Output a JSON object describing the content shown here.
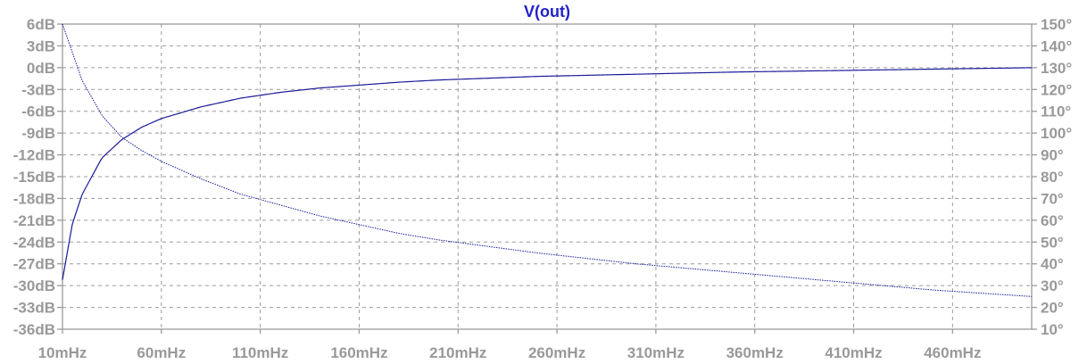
{
  "chart_data": {
    "type": "line",
    "title": "V(out)",
    "x_ticks": [
      "10mHz",
      "60mHz",
      "110mHz",
      "160mHz",
      "210mHz",
      "260mHz",
      "310mHz",
      "360mHz",
      "410mHz",
      "460mHz"
    ],
    "x_tick_values": [
      10,
      60,
      110,
      160,
      210,
      260,
      310,
      360,
      410,
      460
    ],
    "xlim": [
      10,
      500
    ],
    "y_left_ticks": [
      "6dB",
      "3dB",
      "0dB",
      "-3dB",
      "-6dB",
      "-9dB",
      "-12dB",
      "-15dB",
      "-18dB",
      "-21dB",
      "-24dB",
      "-27dB",
      "-30dB",
      "-33dB",
      "-36dB"
    ],
    "y_left_values": [
      6,
      3,
      0,
      -3,
      -6,
      -9,
      -12,
      -15,
      -18,
      -21,
      -24,
      -27,
      -30,
      -33,
      -36
    ],
    "ylim_left": [
      -36,
      6
    ],
    "y_right_ticks": [
      "150°",
      "140°",
      "130°",
      "120°",
      "110°",
      "100°",
      "90°",
      "80°",
      "70°",
      "60°",
      "50°",
      "40°",
      "30°",
      "20°",
      "10°"
    ],
    "y_right_values": [
      150,
      140,
      130,
      120,
      110,
      100,
      90,
      80,
      70,
      60,
      50,
      40,
      30,
      20,
      10
    ],
    "ylim_right": [
      10,
      150
    ],
    "grid": true,
    "series": [
      {
        "axis": "left",
        "style": "solid",
        "x": [
          10,
          15,
          20,
          30,
          40,
          50,
          60,
          80,
          100,
          120,
          140,
          160,
          180,
          200,
          250,
          300,
          350,
          400,
          450,
          500
        ],
        "y": [
          -29.2,
          -21.5,
          -17.4,
          -12.4,
          -9.9,
          -8.2,
          -7.0,
          -5.4,
          -4.2,
          -3.4,
          -2.8,
          -2.4,
          -2.0,
          -1.7,
          -1.2,
          -0.9,
          -0.6,
          -0.4,
          -0.2,
          0.0
        ]
      },
      {
        "axis": "right",
        "style": "dotted",
        "x": [
          10,
          20,
          30,
          40,
          50,
          60,
          80,
          100,
          120,
          140,
          160,
          180,
          200,
          250,
          300,
          350,
          400,
          450,
          500
        ],
        "y": [
          150,
          124,
          108,
          98,
          92,
          87,
          79,
          72,
          67,
          62,
          58,
          54,
          51,
          45,
          40,
          36,
          32,
          28,
          25
        ]
      }
    ]
  }
}
